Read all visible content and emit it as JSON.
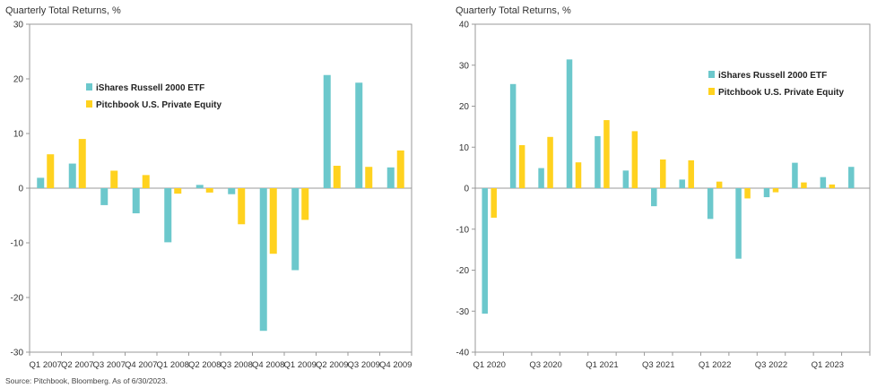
{
  "source_note": "Source: Pitchbook, Bloomberg. As of 6/30/2023.",
  "chart_data": [
    {
      "type": "bar",
      "title": "Quarterly Total Returns, %",
      "categories": [
        "Q1 2007",
        "Q2 2007",
        "Q3 2007",
        "Q4 2007",
        "Q1 2008",
        "Q2 2008",
        "Q3 2008",
        "Q4 2008",
        "Q1 2009",
        "Q2 2009",
        "Q3 2009",
        "Q4 2009"
      ],
      "tick_labels": [
        "Q1 2007",
        "Q2 2007",
        "Q3 2007",
        "Q4 2007",
        "Q1 2008",
        "Q2 2008",
        "Q3 2008",
        "Q4 2008",
        "Q1 2009",
        "Q2 2009",
        "Q3 2009",
        "Q4 2009"
      ],
      "series": [
        {
          "name": "iShares Russell 2000 ETF",
          "color": "#6cc8cc",
          "values": [
            1.9,
            4.5,
            -3.1,
            -4.6,
            -9.9,
            0.6,
            -1.1,
            -26.1,
            -15.0,
            20.7,
            19.3,
            3.8
          ]
        },
        {
          "name": "Pitchbook U.S. Private Equity",
          "color": "#ffd21f",
          "values": [
            6.2,
            9.0,
            3.2,
            2.4,
            -1.0,
            -0.8,
            -6.6,
            -12.0,
            -5.8,
            4.1,
            3.9,
            6.9
          ]
        }
      ],
      "ylim": [
        -30,
        30
      ],
      "yticks": [
        -30,
        -20,
        -10,
        0,
        10,
        20,
        30
      ],
      "grid": false,
      "legend": "top-left"
    },
    {
      "type": "bar",
      "title": "Quarterly Total Returns, %",
      "categories": [
        "Q1 2020",
        "Q2 2020",
        "Q3 2020",
        "Q4 2020",
        "Q1 2021",
        "Q2 2021",
        "Q3 2021",
        "Q4 2021",
        "Q1 2022",
        "Q2 2022",
        "Q3 2022",
        "Q4 2022",
        "Q1 2023",
        "Q2 2023"
      ],
      "tick_labels": [
        "Q1 2020",
        "",
        "Q3 2020",
        "",
        "Q1 2021",
        "",
        "Q3 2021",
        "",
        "Q1 2022",
        "",
        "Q3 2022",
        "",
        "Q1 2023",
        ""
      ],
      "series": [
        {
          "name": "iShares Russell 2000 ETF",
          "color": "#6cc8cc",
          "values": [
            -30.6,
            25.4,
            4.9,
            31.4,
            12.7,
            4.3,
            -4.4,
            2.1,
            -7.5,
            -17.2,
            -2.2,
            6.2,
            2.7,
            5.2
          ]
        },
        {
          "name": "Pitchbook U.S. Private Equity",
          "color": "#ffd21f",
          "values": [
            -7.2,
            10.5,
            12.5,
            6.3,
            16.6,
            13.9,
            7.0,
            6.8,
            1.6,
            -2.5,
            -1.0,
            1.4,
            0.9,
            null
          ]
        }
      ],
      "ylim": [
        -40,
        40
      ],
      "yticks": [
        -40,
        -30,
        -20,
        -10,
        0,
        10,
        20,
        30,
        40
      ],
      "grid": false,
      "legend": "top-center"
    }
  ]
}
